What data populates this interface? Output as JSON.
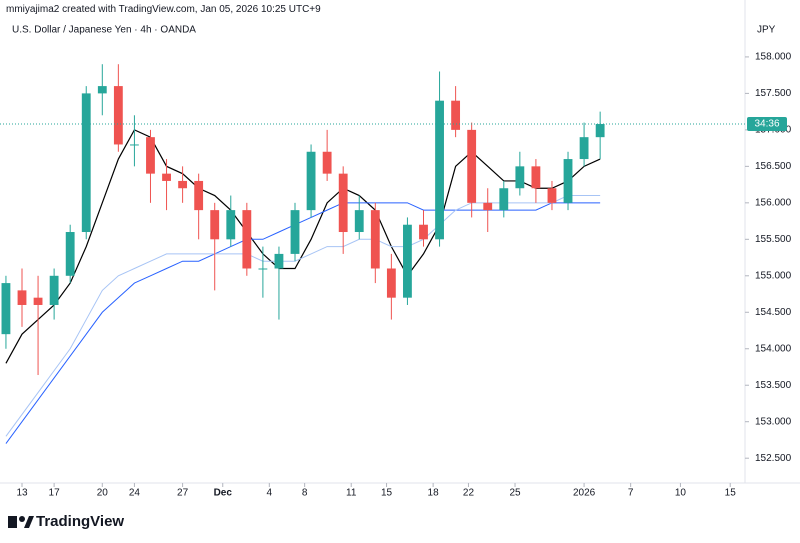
{
  "header": "mmiyajima2 created with TradingView.com, Jan 05, 2026 10:25 UTC+9",
  "footer_logo": "TradingView",
  "chart_data": {
    "type": "candlestick",
    "title": "U.S. Dollar / Japanese Yen · 4h · OANDA",
    "y_axis_label": "JPY",
    "countdown": "34:36",
    "last_price": 157.08,
    "up_color": "#26a69a",
    "down_color": "#ef5350",
    "xlim": [
      -1.37,
      45.02
    ],
    "ylim": [
      152.16,
      158.78
    ],
    "xticks": [
      {
        "value": 0,
        "label": "13"
      },
      {
        "value": 2,
        "label": "17"
      },
      {
        "value": 5,
        "label": "20"
      },
      {
        "value": 7,
        "label": "24"
      },
      {
        "value": 10,
        "label": "27"
      },
      {
        "value": 12.5,
        "label": "Dec"
      },
      {
        "value": 15.4,
        "label": "4"
      },
      {
        "value": 17.6,
        "label": "8"
      },
      {
        "value": 20.5,
        "label": "11"
      },
      {
        "value": 22.7,
        "label": "15"
      },
      {
        "value": 25.6,
        "label": "18"
      },
      {
        "value": 27.8,
        "label": "22"
      },
      {
        "value": 30.7,
        "label": "25"
      },
      {
        "value": 35,
        "label": "2026"
      },
      {
        "value": 37.9,
        "label": "7"
      },
      {
        "value": 41,
        "label": "10"
      },
      {
        "value": 44.1,
        "label": "15"
      }
    ],
    "yticks": [
      {
        "value": 152.5,
        "label": "152.500"
      },
      {
        "value": 153,
        "label": "153.000"
      },
      {
        "value": 153.5,
        "label": "153.500"
      },
      {
        "value": 154,
        "label": "154.000"
      },
      {
        "value": 154.5,
        "label": "154.500"
      },
      {
        "value": 155,
        "label": "155.000"
      },
      {
        "value": 155.5,
        "label": "155.500"
      },
      {
        "value": 156,
        "label": "156.000"
      },
      {
        "value": 156.5,
        "label": "156.500"
      },
      {
        "value": 157,
        "label": "157.000"
      },
      {
        "value": 157.5,
        "label": "157.500"
      },
      {
        "value": 158,
        "label": "158.000"
      }
    ],
    "x": [
      -1,
      0,
      1,
      2,
      3,
      4,
      5,
      6,
      7,
      8,
      9,
      10,
      11,
      12,
      13,
      14,
      15,
      16,
      17,
      18,
      19,
      20,
      21,
      22,
      23,
      24,
      25,
      26,
      27,
      28,
      29,
      30,
      31,
      32,
      33,
      34,
      35,
      36
    ],
    "open": [
      154.2,
      154.8,
      154.7,
      154.6,
      155.0,
      155.6,
      157.5,
      157.6,
      156.8,
      156.9,
      156.4,
      156.3,
      156.3,
      155.9,
      155.5,
      155.9,
      155.1,
      155.1,
      155.3,
      155.9,
      156.7,
      156.4,
      155.6,
      155.9,
      155.1,
      154.7,
      155.7,
      155.5,
      157.4,
      157.0,
      156.0,
      155.9,
      156.2,
      156.5,
      156.2,
      156.0,
      156.6,
      156.9
    ],
    "high": [
      155.0,
      155.1,
      155.0,
      155.1,
      155.7,
      157.6,
      157.9,
      157.9,
      157.2,
      157.0,
      156.6,
      156.5,
      156.4,
      156.0,
      156.1,
      156.0,
      155.4,
      155.4,
      156.0,
      156.8,
      157.0,
      156.5,
      156.1,
      156.0,
      155.3,
      155.8,
      155.9,
      157.8,
      157.6,
      157.1,
      156.2,
      156.3,
      156.7,
      156.6,
      156.3,
      156.7,
      157.1,
      157.25
    ],
    "low": [
      154.0,
      154.3,
      153.64,
      154.4,
      154.9,
      155.5,
      157.2,
      156.7,
      156.5,
      156.0,
      155.9,
      156.0,
      155.5,
      154.8,
      155.4,
      155.0,
      154.7,
      154.4,
      155.2,
      155.8,
      156.3,
      155.3,
      155.5,
      154.9,
      154.4,
      154.6,
      155.4,
      155.4,
      156.9,
      155.8,
      155.6,
      155.8,
      156.1,
      156.0,
      155.9,
      155.9,
      156.5,
      156.6
    ],
    "close": [
      154.9,
      154.6,
      154.6,
      155.0,
      155.6,
      157.5,
      157.6,
      156.8,
      156.8,
      156.4,
      156.3,
      156.2,
      155.9,
      155.5,
      155.9,
      155.1,
      155.1,
      155.3,
      155.9,
      156.7,
      156.4,
      155.6,
      155.9,
      155.1,
      154.7,
      155.7,
      155.5,
      157.4,
      157.0,
      156.0,
      155.9,
      156.2,
      156.5,
      156.2,
      156.0,
      156.6,
      156.9,
      157.08
    ],
    "lines": [
      {
        "color": "#000000",
        "values": [
          153.8,
          154.2,
          154.4,
          154.6,
          154.9,
          155.4,
          156.0,
          156.6,
          157.0,
          156.9,
          156.5,
          156.4,
          156.2,
          156.1,
          155.9,
          155.6,
          155.3,
          155.1,
          155.1,
          155.5,
          156.0,
          156.2,
          156.1,
          155.9,
          155.4,
          155.0,
          155.3,
          155.7,
          156.5,
          156.7,
          156.5,
          156.3,
          156.3,
          156.2,
          156.2,
          156.3,
          156.5,
          156.6
        ]
      },
      {
        "color": "#2962ff",
        "values": [
          152.7,
          153.0,
          153.3,
          153.6,
          153.9,
          154.2,
          154.5,
          154.7,
          154.9,
          155.0,
          155.1,
          155.2,
          155.2,
          155.3,
          155.4,
          155.5,
          155.5,
          155.6,
          155.7,
          155.8,
          155.9,
          156.0,
          156.0,
          156.0,
          156.0,
          156.0,
          155.9,
          155.9,
          155.9,
          155.9,
          155.9,
          155.9,
          155.9,
          155.9,
          156.0,
          156.0,
          156.0,
          156.0
        ]
      },
      {
        "color": "#a7c4f5",
        "values": [
          152.8,
          153.1,
          153.4,
          153.7,
          154.0,
          154.4,
          154.8,
          155.0,
          155.1,
          155.2,
          155.3,
          155.3,
          155.3,
          155.3,
          155.3,
          155.3,
          155.2,
          155.2,
          155.2,
          155.3,
          155.4,
          155.4,
          155.5,
          155.5,
          155.4,
          155.4,
          155.5,
          155.7,
          155.9,
          156.0,
          156.0,
          156.0,
          156.0,
          156.0,
          156.0,
          156.1,
          156.1,
          156.1
        ]
      }
    ]
  }
}
